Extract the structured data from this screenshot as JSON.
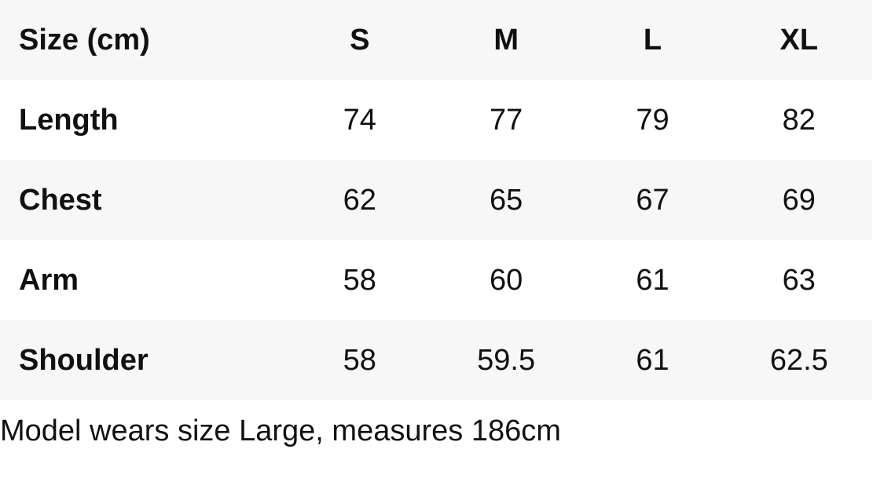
{
  "table": {
    "header": [
      "Size (cm)",
      "S",
      "M",
      "L",
      "XL"
    ],
    "rows": [
      {
        "label": "Length",
        "values": [
          "74",
          "77",
          "79",
          "82"
        ]
      },
      {
        "label": "Chest",
        "values": [
          "62",
          "65",
          "67",
          "69"
        ]
      },
      {
        "label": "Arm",
        "values": [
          "58",
          "60",
          "61",
          "63"
        ]
      },
      {
        "label": "Shoulder",
        "values": [
          "58",
          "59.5",
          "61",
          "62.5"
        ]
      }
    ]
  },
  "caption": "Model wears size Large, measures 186cm",
  "colors": {
    "shaded_row": "#f7f7f7",
    "text": "#111111"
  }
}
